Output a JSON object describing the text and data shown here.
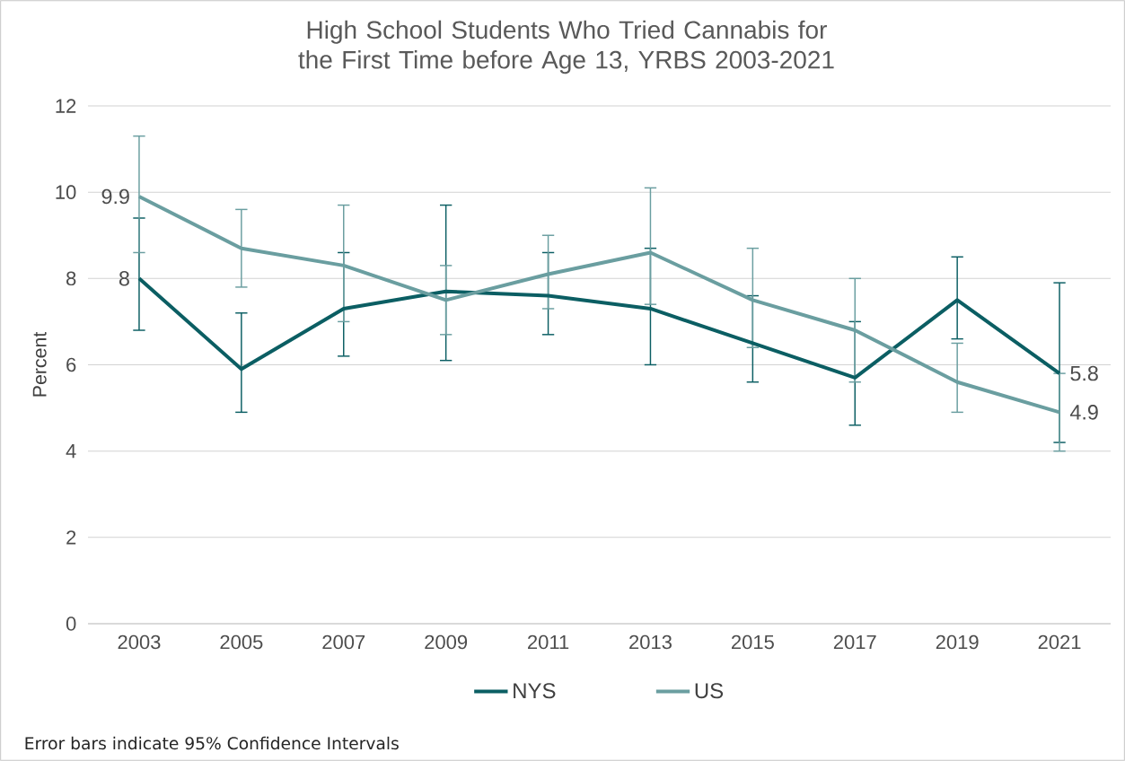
{
  "chart_data": {
    "type": "line",
    "title": "High School Students Who Tried Cannabis for the First Time before Age 13, YRBS 2003-2021",
    "ylabel": "Percent",
    "categories": [
      "2003",
      "2005",
      "2007",
      "2009",
      "2011",
      "2013",
      "2015",
      "2017",
      "2019",
      "2021"
    ],
    "series": [
      {
        "name": "NYS",
        "color": "#0b5e63",
        "values": [
          8.0,
          5.9,
          7.3,
          7.7,
          7.6,
          7.3,
          6.5,
          5.7,
          7.5,
          5.8
        ],
        "errors": [
          [
            6.8,
            9.4
          ],
          [
            4.9,
            7.2
          ],
          [
            6.2,
            8.6
          ],
          [
            6.1,
            9.7
          ],
          [
            6.7,
            8.6
          ],
          [
            6.0,
            8.7
          ],
          [
            5.6,
            7.6
          ],
          [
            4.6,
            7.0
          ],
          [
            6.6,
            8.5
          ],
          [
            4.2,
            7.9
          ]
        ],
        "value_labels": [
          "8",
          null,
          null,
          null,
          null,
          null,
          null,
          null,
          null,
          "5.8"
        ]
      },
      {
        "name": "US",
        "color": "#6a9ea0",
        "values": [
          9.9,
          8.7,
          8.3,
          7.5,
          8.1,
          8.6,
          7.5,
          6.8,
          5.6,
          4.9
        ],
        "errors": [
          [
            8.6,
            11.3
          ],
          [
            7.8,
            9.6
          ],
          [
            7.0,
            9.7
          ],
          [
            6.7,
            8.3
          ],
          [
            7.3,
            9.0
          ],
          [
            7.4,
            10.1
          ],
          [
            6.4,
            8.7
          ],
          [
            5.6,
            8.0
          ],
          [
            4.9,
            6.5
          ],
          [
            4.0,
            5.8
          ]
        ],
        "value_labels": [
          "9.9",
          null,
          null,
          null,
          null,
          null,
          null,
          null,
          null,
          "4.9"
        ]
      }
    ],
    "ylim": [
      0,
      12
    ],
    "yticks": [
      0,
      2,
      4,
      6,
      8,
      10,
      12
    ],
    "grid": "y",
    "legend": "bottom",
    "marker": "none",
    "line_style": "solid",
    "annotations": [
      "Error bars indicate 95% Confidence Intervals"
    ]
  }
}
